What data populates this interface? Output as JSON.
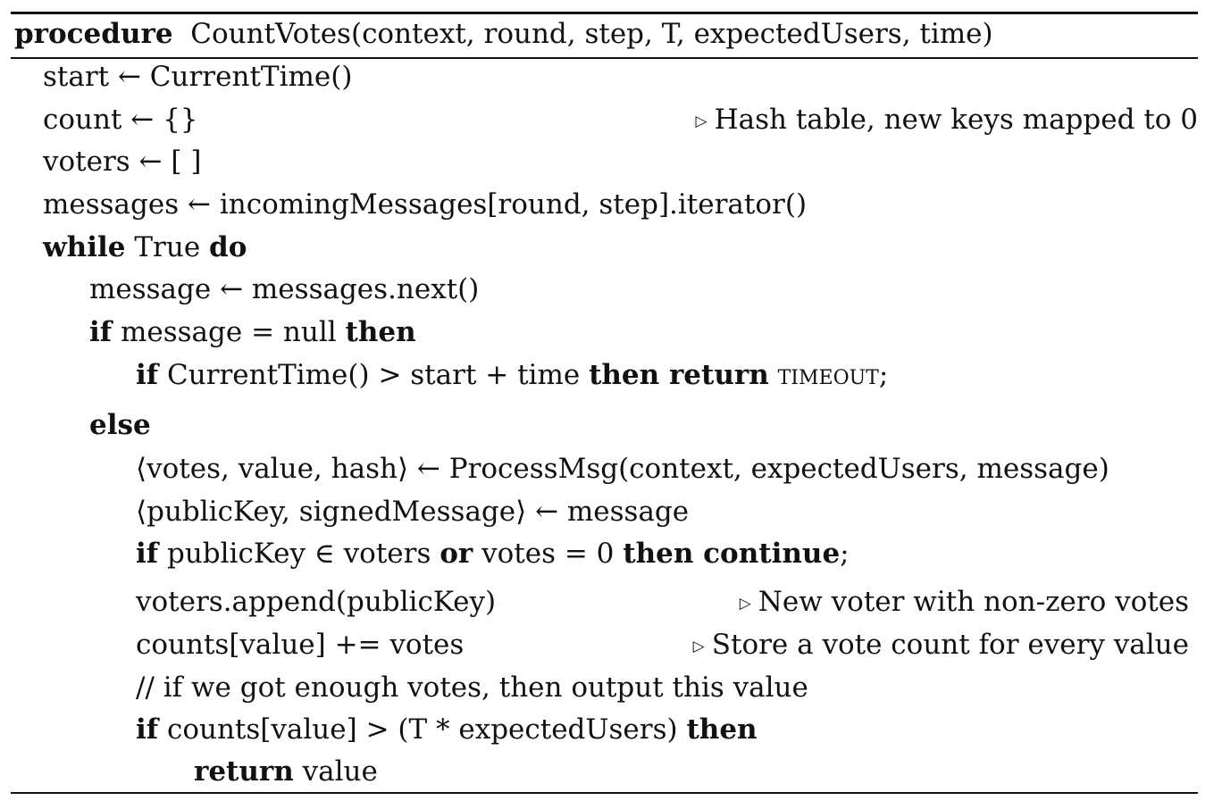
{
  "header": {
    "keyword": "procedure",
    "signature": "CountVotes(context, round, step, T, expectedUsers, time)"
  },
  "lines": {
    "l1": "start ← CurrentTime()",
    "l2": "count ← {}",
    "l2_comment": "Hash table, new keys mapped to 0",
    "l3": "voters ← [ ]",
    "l4": "messages ← incomingMessages[round, step].iterator()",
    "l5_kw1": "while",
    "l5_text": " True ",
    "l5_kw2": "do",
    "l6": "message ← messages.next()",
    "l7_kw1": "if",
    "l7_text": " message = null ",
    "l7_kw2": "then",
    "l8_kw1": "if",
    "l8_text": " CurrentTime() > start + time ",
    "l8_kw2": "then return",
    "l8_sc": " timeout",
    "l8_end": ";",
    "l9_kw": "else",
    "l10": "⟨votes, value, hash⟩ ← ProcessMsg(context, expectedUsers, message)",
    "l11": "⟨publicKey, signedMessage⟩ ← message",
    "l12_kw1": "if",
    "l12_text1": " publicKey ∈ voters ",
    "l12_kw2": "or",
    "l12_text2": " votes = 0 ",
    "l12_kw3": "then continue",
    "l12_end": ";",
    "l13": "voters.append(publicKey)",
    "l13_comment": "New voter with non-zero votes",
    "l14": "counts[value] += votes",
    "l14_comment": "Store a vote count for every value",
    "l15": "// if we got enough votes, then output this value",
    "l16_kw1": "if",
    "l16_text": " counts[value] > (T * expectedUsers) ",
    "l16_kw2": "then",
    "l17_kw": "return",
    "l17_text": " value"
  },
  "icons": {
    "comment_marker": "▷"
  }
}
